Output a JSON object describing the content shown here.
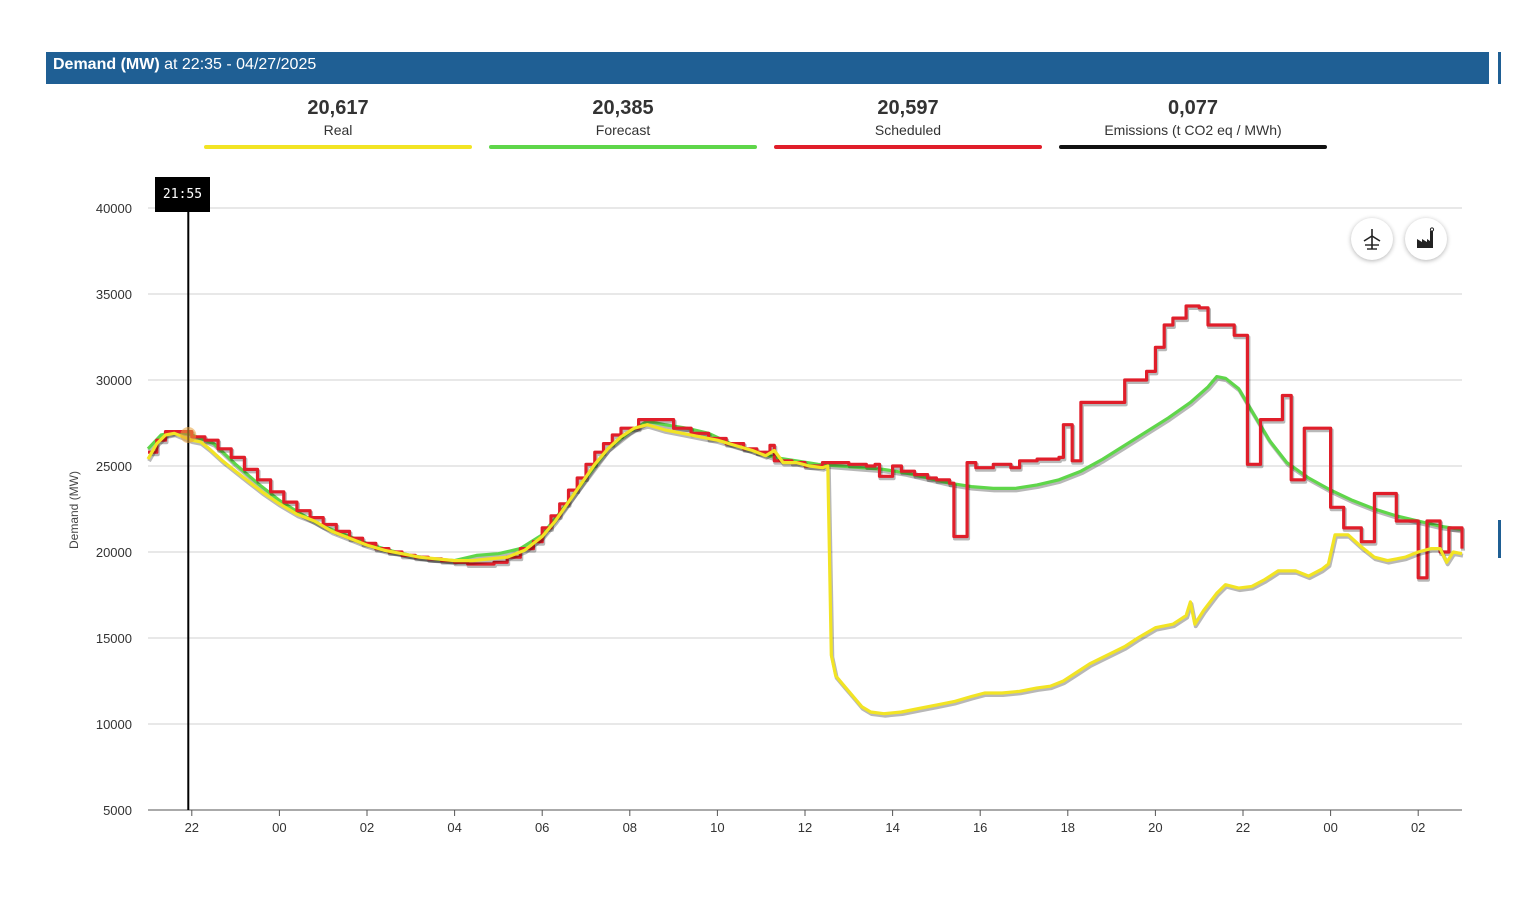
{
  "header": {
    "title_bold": "Demand (MW)",
    "title_rest": "at 22:35 - 04/27/2025",
    "color": "#1f5f94"
  },
  "kpis": [
    {
      "value": "20,617",
      "label": "Real",
      "color": "#f2e424"
    },
    {
      "value": "20,385",
      "label": "Forecast",
      "color": "#5fd64a"
    },
    {
      "value": "20,597",
      "label": "Scheduled",
      "color": "#e01e2a"
    },
    {
      "value": "0,077",
      "label": "Emissions (t CO2 eq / MWh)",
      "color": "#111111"
    }
  ],
  "tooltip": {
    "time": "21:55"
  },
  "icons": [
    "wind-turbine-icon",
    "factory-icon"
  ],
  "chart_data": {
    "type": "line",
    "ylabel": "Demand (MW)",
    "ylim": [
      5000,
      40000
    ],
    "yticks": [
      "40000",
      "35000",
      "30000",
      "25000",
      "20000",
      "15000",
      "10000",
      "5000"
    ],
    "x_unit": "hours since 00:00 04/27/2025",
    "xlim": [
      21.0,
      51.0
    ],
    "xticks": [
      {
        "x": 22,
        "label": "22"
      },
      {
        "x": 24,
        "label": "00"
      },
      {
        "x": 26,
        "label": "02"
      },
      {
        "x": 28,
        "label": "04"
      },
      {
        "x": 30,
        "label": "06"
      },
      {
        "x": 32,
        "label": "08"
      },
      {
        "x": 34,
        "label": "10"
      },
      {
        "x": 36,
        "label": "12"
      },
      {
        "x": 38,
        "label": "14"
      },
      {
        "x": 40,
        "label": "16"
      },
      {
        "x": 42,
        "label": "18"
      },
      {
        "x": 44,
        "label": "20"
      },
      {
        "x": 46,
        "label": "22"
      },
      {
        "x": 48,
        "label": "00"
      },
      {
        "x": 50,
        "label": "02"
      }
    ],
    "cursor_x": 21.92,
    "grid": true,
    "series": [
      {
        "name": "Forecast",
        "color": "#5fd64a",
        "step": false,
        "points": [
          [
            21.0,
            26000
          ],
          [
            21.3,
            26800
          ],
          [
            21.7,
            27000
          ],
          [
            22.0,
            26800
          ],
          [
            22.5,
            26300
          ],
          [
            23.0,
            25100
          ],
          [
            23.5,
            24000
          ],
          [
            24.0,
            23000
          ],
          [
            24.5,
            22200
          ],
          [
            25.0,
            21500
          ],
          [
            25.5,
            21000
          ],
          [
            26.0,
            20500
          ],
          [
            26.5,
            20100
          ],
          [
            27.0,
            19800
          ],
          [
            27.5,
            19600
          ],
          [
            28.0,
            19500
          ],
          [
            28.5,
            19800
          ],
          [
            29.0,
            19900
          ],
          [
            29.5,
            20200
          ],
          [
            30.0,
            21000
          ],
          [
            30.5,
            22600
          ],
          [
            31.0,
            24300
          ],
          [
            31.5,
            26000
          ],
          [
            32.0,
            27000
          ],
          [
            32.4,
            27600
          ],
          [
            32.8,
            27400
          ],
          [
            33.3,
            27200
          ],
          [
            33.8,
            26900
          ],
          [
            34.3,
            26300
          ],
          [
            34.8,
            25900
          ],
          [
            35.3,
            25500
          ],
          [
            35.8,
            25300
          ],
          [
            36.3,
            25100
          ],
          [
            36.8,
            25000
          ],
          [
            37.3,
            24900
          ],
          [
            37.8,
            24800
          ],
          [
            38.3,
            24600
          ],
          [
            38.8,
            24300
          ],
          [
            39.3,
            24000
          ],
          [
            39.8,
            23800
          ],
          [
            40.3,
            23700
          ],
          [
            40.8,
            23700
          ],
          [
            41.3,
            23900
          ],
          [
            41.8,
            24200
          ],
          [
            42.3,
            24700
          ],
          [
            42.8,
            25400
          ],
          [
            43.3,
            26200
          ],
          [
            43.8,
            27000
          ],
          [
            44.3,
            27800
          ],
          [
            44.8,
            28700
          ],
          [
            45.2,
            29600
          ],
          [
            45.4,
            30200
          ],
          [
            45.6,
            30100
          ],
          [
            45.9,
            29500
          ],
          [
            46.2,
            28200
          ],
          [
            46.6,
            26500
          ],
          [
            47.0,
            25200
          ],
          [
            47.5,
            24300
          ],
          [
            48.0,
            23600
          ],
          [
            48.5,
            23000
          ],
          [
            49.0,
            22500
          ],
          [
            49.5,
            22100
          ],
          [
            50.0,
            21800
          ],
          [
            50.5,
            21500
          ],
          [
            51.0,
            21300
          ]
        ]
      },
      {
        "name": "Scheduled",
        "color": "#e01e2a",
        "step": true,
        "points": [
          [
            21.0,
            25800
          ],
          [
            21.2,
            26500
          ],
          [
            21.4,
            27000
          ],
          [
            22.0,
            26700
          ],
          [
            22.3,
            26500
          ],
          [
            22.6,
            26000
          ],
          [
            22.9,
            25500
          ],
          [
            23.2,
            24800
          ],
          [
            23.5,
            24200
          ],
          [
            23.8,
            23500
          ],
          [
            24.1,
            22900
          ],
          [
            24.4,
            22400
          ],
          [
            24.7,
            22000
          ],
          [
            25.0,
            21600
          ],
          [
            25.3,
            21200
          ],
          [
            25.6,
            20800
          ],
          [
            25.9,
            20500
          ],
          [
            26.2,
            20200
          ],
          [
            26.5,
            20000
          ],
          [
            26.8,
            19800
          ],
          [
            27.1,
            19700
          ],
          [
            27.4,
            19600
          ],
          [
            27.7,
            19500
          ],
          [
            28.0,
            19400
          ],
          [
            28.3,
            19300
          ],
          [
            28.6,
            19300
          ],
          [
            28.9,
            19400
          ],
          [
            29.2,
            19700
          ],
          [
            29.5,
            20200
          ],
          [
            29.8,
            20600
          ],
          [
            30.0,
            21400
          ],
          [
            30.2,
            22100
          ],
          [
            30.4,
            22800
          ],
          [
            30.6,
            23600
          ],
          [
            30.8,
            24300
          ],
          [
            31.0,
            25100
          ],
          [
            31.2,
            25800
          ],
          [
            31.4,
            26300
          ],
          [
            31.6,
            26800
          ],
          [
            31.8,
            27200
          ],
          [
            32.2,
            27700
          ],
          [
            33.0,
            27200
          ],
          [
            33.4,
            26900
          ],
          [
            33.8,
            26600
          ],
          [
            34.2,
            26300
          ],
          [
            34.6,
            26000
          ],
          [
            34.9,
            25800
          ],
          [
            35.2,
            26200
          ],
          [
            35.3,
            25300
          ],
          [
            35.7,
            25200
          ],
          [
            36.0,
            25000
          ],
          [
            36.4,
            25200
          ],
          [
            37.0,
            25100
          ],
          [
            37.4,
            25000
          ],
          [
            37.6,
            25100
          ],
          [
            37.7,
            24400
          ],
          [
            38.0,
            25000
          ],
          [
            38.2,
            24700
          ],
          [
            38.5,
            24500
          ],
          [
            38.8,
            24300
          ],
          [
            39.0,
            24200
          ],
          [
            39.3,
            24000
          ],
          [
            39.4,
            20900
          ],
          [
            39.7,
            25200
          ],
          [
            39.9,
            24900
          ],
          [
            40.3,
            25100
          ],
          [
            40.7,
            24900
          ],
          [
            40.9,
            25300
          ],
          [
            41.3,
            25400
          ],
          [
            41.8,
            25500
          ],
          [
            41.9,
            27400
          ],
          [
            42.1,
            25300
          ],
          [
            42.3,
            28700
          ],
          [
            42.7,
            28700
          ],
          [
            43.0,
            28700
          ],
          [
            43.3,
            30000
          ],
          [
            43.8,
            30500
          ],
          [
            44.0,
            31900
          ],
          [
            44.2,
            33200
          ],
          [
            44.4,
            33600
          ],
          [
            44.7,
            34300
          ],
          [
            45.0,
            34200
          ],
          [
            45.2,
            33200
          ],
          [
            45.6,
            33200
          ],
          [
            45.8,
            32600
          ],
          [
            46.1,
            25100
          ],
          [
            46.4,
            27700
          ],
          [
            46.8,
            27700
          ],
          [
            46.9,
            29100
          ],
          [
            47.1,
            24200
          ],
          [
            47.4,
            27200
          ],
          [
            48.0,
            22600
          ],
          [
            48.3,
            21400
          ],
          [
            48.7,
            20600
          ],
          [
            49.0,
            23400
          ],
          [
            49.3,
            23400
          ],
          [
            49.5,
            21800
          ],
          [
            50.0,
            18500
          ],
          [
            50.2,
            21800
          ],
          [
            50.5,
            20000
          ],
          [
            50.7,
            21400
          ],
          [
            51.0,
            20200
          ]
        ]
      },
      {
        "name": "Real",
        "color": "#f2e424",
        "step": false,
        "points": [
          [
            21.0,
            25400
          ],
          [
            21.2,
            26300
          ],
          [
            21.4,
            26800
          ],
          [
            21.6,
            26900
          ],
          [
            21.8,
            26700
          ],
          [
            22.0,
            26500
          ],
          [
            22.2,
            26400
          ],
          [
            22.4,
            26000
          ],
          [
            22.7,
            25300
          ],
          [
            23.0,
            24700
          ],
          [
            23.3,
            24100
          ],
          [
            23.6,
            23500
          ],
          [
            24.0,
            22800
          ],
          [
            24.4,
            22200
          ],
          [
            24.8,
            21800
          ],
          [
            25.2,
            21200
          ],
          [
            25.6,
            20800
          ],
          [
            26.0,
            20400
          ],
          [
            26.4,
            20100
          ],
          [
            26.8,
            19900
          ],
          [
            27.2,
            19700
          ],
          [
            27.6,
            19600
          ],
          [
            28.0,
            19500
          ],
          [
            28.4,
            19500
          ],
          [
            28.8,
            19600
          ],
          [
            29.2,
            19700
          ],
          [
            29.6,
            20100
          ],
          [
            30.0,
            20900
          ],
          [
            30.3,
            21800
          ],
          [
            30.6,
            22900
          ],
          [
            30.9,
            24000
          ],
          [
            31.2,
            25100
          ],
          [
            31.5,
            26000
          ],
          [
            31.8,
            26700
          ],
          [
            32.1,
            27200
          ],
          [
            32.4,
            27400
          ],
          [
            32.8,
            27100
          ],
          [
            33.2,
            26900
          ],
          [
            33.6,
            26700
          ],
          [
            34.0,
            26500
          ],
          [
            34.4,
            26200
          ],
          [
            34.8,
            25900
          ],
          [
            35.1,
            25600
          ],
          [
            35.3,
            25900
          ],
          [
            35.5,
            25200
          ],
          [
            35.8,
            25200
          ],
          [
            36.1,
            25000
          ],
          [
            36.4,
            24900
          ],
          [
            36.52,
            25000
          ],
          [
            36.6,
            14000
          ],
          [
            36.7,
            12800
          ],
          [
            36.9,
            12200
          ],
          [
            37.1,
            11600
          ],
          [
            37.3,
            11000
          ],
          [
            37.5,
            10700
          ],
          [
            37.8,
            10600
          ],
          [
            38.2,
            10700
          ],
          [
            38.6,
            10900
          ],
          [
            39.0,
            11100
          ],
          [
            39.4,
            11300
          ],
          [
            39.8,
            11600
          ],
          [
            40.1,
            11800
          ],
          [
            40.5,
            11800
          ],
          [
            40.9,
            11900
          ],
          [
            41.3,
            12100
          ],
          [
            41.6,
            12200
          ],
          [
            41.9,
            12500
          ],
          [
            42.2,
            13000
          ],
          [
            42.5,
            13500
          ],
          [
            42.9,
            14000
          ],
          [
            43.3,
            14500
          ],
          [
            43.6,
            15000
          ],
          [
            44.0,
            15600
          ],
          [
            44.4,
            15800
          ],
          [
            44.7,
            16300
          ],
          [
            44.8,
            17100
          ],
          [
            44.9,
            15800
          ],
          [
            45.1,
            16600
          ],
          [
            45.4,
            17600
          ],
          [
            45.6,
            18100
          ],
          [
            45.9,
            17900
          ],
          [
            46.2,
            18000
          ],
          [
            46.5,
            18400
          ],
          [
            46.8,
            18900
          ],
          [
            47.2,
            18900
          ],
          [
            47.5,
            18600
          ],
          [
            47.8,
            19000
          ],
          [
            47.95,
            19300
          ],
          [
            48.1,
            21000
          ],
          [
            48.4,
            21000
          ],
          [
            48.7,
            20300
          ],
          [
            49.0,
            19700
          ],
          [
            49.3,
            19500
          ],
          [
            49.7,
            19700
          ],
          [
            50.0,
            20000
          ],
          [
            50.3,
            20200
          ],
          [
            50.5,
            20200
          ],
          [
            50.65,
            19400
          ],
          [
            50.8,
            20000
          ],
          [
            51.0,
            19900
          ]
        ]
      }
    ]
  }
}
